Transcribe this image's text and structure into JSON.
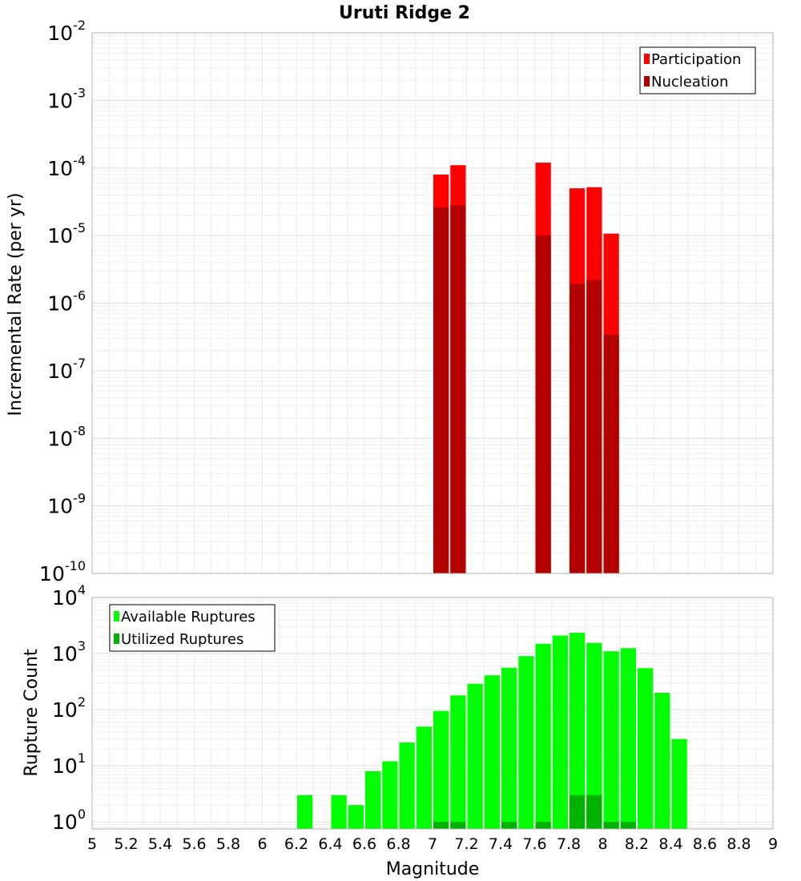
{
  "chart_data": [
    {
      "type": "bar",
      "title": "Uruti Ridge 2",
      "xlabel": "",
      "ylabel": "Incremental Rate (per yr)",
      "y_scale": "log",
      "ylim": [
        1e-10,
        0.01
      ],
      "xlim": [
        5,
        9
      ],
      "y_ticks": [
        {
          "mantissa": "10",
          "exponent": "-10"
        },
        {
          "mantissa": "10",
          "exponent": "-9"
        },
        {
          "mantissa": "10",
          "exponent": "-8"
        },
        {
          "mantissa": "10",
          "exponent": "-7"
        },
        {
          "mantissa": "10",
          "exponent": "-6"
        },
        {
          "mantissa": "10",
          "exponent": "-5"
        },
        {
          "mantissa": "10",
          "exponent": "-4"
        },
        {
          "mantissa": "10",
          "exponent": "-3"
        },
        {
          "mantissa": "10",
          "exponent": "-2"
        }
      ],
      "legend_position": "top-right",
      "grid": true,
      "bar_width": 0.1,
      "series": [
        {
          "name": "Participation",
          "color": "#ff0000",
          "x": [
            7.05,
            7.15,
            7.65,
            7.85,
            7.95,
            8.05
          ],
          "values": [
            8e-05,
            0.00011,
            0.00012,
            5e-05,
            5.2e-05,
            1.07e-05
          ]
        },
        {
          "name": "Nucleation",
          "color": "#b20000",
          "x": [
            7.05,
            7.15,
            7.65,
            7.85,
            7.95,
            8.05
          ],
          "values": [
            2.6e-05,
            2.8e-05,
            1e-05,
            1.95e-06,
            2.2e-06,
            3.4e-07
          ]
        }
      ]
    },
    {
      "type": "bar",
      "title": "",
      "xlabel": "Magnitude",
      "ylabel": "Rupture Count",
      "y_scale": "log",
      "ylim": [
        0.75,
        10000
      ],
      "xlim": [
        5,
        9
      ],
      "y_ticks": [
        {
          "mantissa": "10",
          "exponent": "0"
        },
        {
          "mantissa": "10",
          "exponent": "1"
        },
        {
          "mantissa": "10",
          "exponent": "2"
        },
        {
          "mantissa": "10",
          "exponent": "3"
        },
        {
          "mantissa": "10",
          "exponent": "4"
        }
      ],
      "x_tick_labels": [
        "5",
        "5.2",
        "5.4",
        "5.6",
        "5.8",
        "6",
        "6.2",
        "6.4",
        "6.6",
        "6.8",
        "7",
        "7.2",
        "7.4",
        "7.6",
        "7.8",
        "8",
        "8.2",
        "8.4",
        "8.6",
        "8.8",
        "9"
      ],
      "legend_position": "top-left",
      "grid": true,
      "bar_width": 0.1,
      "series": [
        {
          "name": "Available Ruptures",
          "color": "#00ff00",
          "x": [
            6.25,
            6.45,
            6.55,
            6.65,
            6.75,
            6.85,
            6.95,
            7.05,
            7.15,
            7.25,
            7.35,
            7.45,
            7.55,
            7.65,
            7.75,
            7.85,
            7.95,
            8.05,
            8.15,
            8.25,
            8.35,
            8.45
          ],
          "values": [
            3,
            3,
            2,
            8,
            12,
            26,
            50,
            95,
            180,
            290,
            410,
            560,
            900,
            1500,
            2100,
            2350,
            1550,
            1100,
            1250,
            550,
            200,
            30
          ]
        },
        {
          "name": "Utilized Ruptures",
          "color": "#00b200",
          "x": [
            7.05,
            7.15,
            7.45,
            7.65,
            7.85,
            7.95,
            8.05,
            8.15
          ],
          "values": [
            1,
            1,
            1,
            1,
            3,
            3,
            1,
            1
          ]
        }
      ]
    }
  ]
}
